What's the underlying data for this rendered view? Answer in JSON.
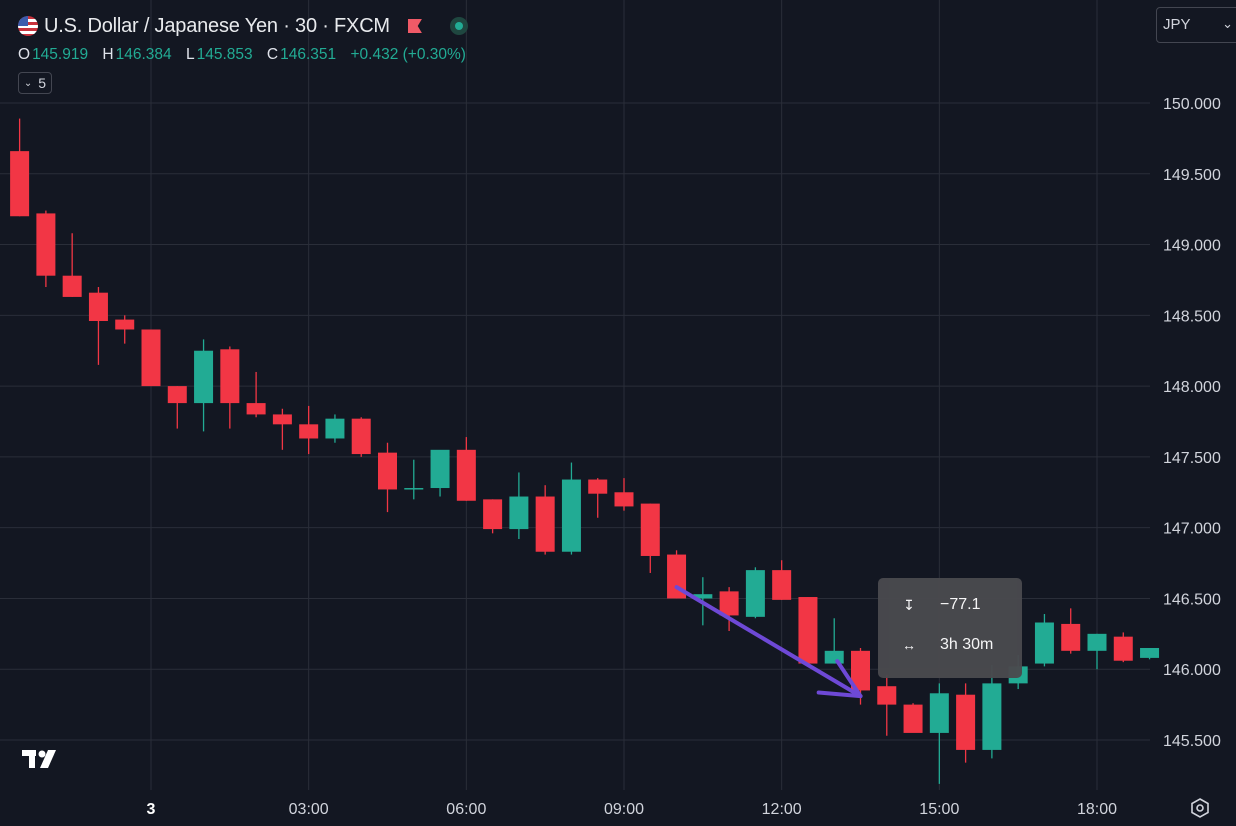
{
  "header": {
    "title": "U.S. Dollar / Japanese Yen · 30 · FXCM",
    "ohlc": [
      {
        "key": "O",
        "value": "145.919"
      },
      {
        "key": "H",
        "value": "146.384"
      },
      {
        "key": "L",
        "value": "145.853"
      },
      {
        "key": "C",
        "value": "146.351"
      },
      {
        "key": "",
        "value": "+0.432 (+0.30%)"
      }
    ],
    "indicators_count": "5",
    "currency": "JPY"
  },
  "measure": {
    "price_change": "−77.1",
    "time_span": "3h 30m"
  },
  "colors": {
    "background": "#131722",
    "up": "#22ab94",
    "down": "#f23645",
    "grid": "#2a2e39",
    "arrow": "#6e49d6"
  },
  "icons": [
    "us-japan-flag-icon",
    "flag-icon",
    "live-status-icon",
    "chevron-down-icon",
    "tradingview-logo-icon",
    "settings-icon",
    "price-range-icon",
    "time-range-icon"
  ],
  "chart_data": {
    "type": "candlestick",
    "title": "U.S. Dollar / Japanese Yen · 30 · FXCM",
    "y_ticks": [
      150.0,
      149.5,
      149.0,
      148.5,
      148.0,
      147.5,
      147.0,
      146.5,
      146.0,
      145.5
    ],
    "y_tick_labels": [
      "150.000",
      "149.500",
      "149.000",
      "148.500",
      "148.000",
      "147.500",
      "147.000",
      "146.500",
      "146.000",
      "145.500"
    ],
    "x_ticks": [
      {
        "label": "3",
        "hour": 0
      },
      {
        "label": "03:00",
        "hour": 3
      },
      {
        "label": "06:00",
        "hour": 6
      },
      {
        "label": "09:00",
        "hour": 9
      },
      {
        "label": "12:00",
        "hour": 12
      },
      {
        "label": "15:00",
        "hour": 15
      },
      {
        "label": "18:00",
        "hour": 18
      }
    ],
    "ylim": [
      145.2,
      150.1
    ],
    "candles": [
      {
        "t": -2.5,
        "o": 149.66,
        "h": 149.89,
        "l": 149.2,
        "c": 149.2
      },
      {
        "t": -2.0,
        "o": 149.22,
        "h": 149.24,
        "l": 148.7,
        "c": 148.78
      },
      {
        "t": -1.5,
        "o": 148.78,
        "h": 149.08,
        "l": 148.63,
        "c": 148.63
      },
      {
        "t": -1.0,
        "o": 148.66,
        "h": 148.7,
        "l": 148.15,
        "c": 148.46
      },
      {
        "t": -0.5,
        "o": 148.47,
        "h": 148.5,
        "l": 148.3,
        "c": 148.4
      },
      {
        "t": 0.0,
        "o": 148.4,
        "h": 148.4,
        "l": 148.0,
        "c": 148.0
      },
      {
        "t": 0.5,
        "o": 148.0,
        "h": 148.0,
        "l": 147.7,
        "c": 147.88
      },
      {
        "t": 1.0,
        "o": 147.88,
        "h": 148.33,
        "l": 147.68,
        "c": 148.25
      },
      {
        "t": 1.5,
        "o": 148.26,
        "h": 148.28,
        "l": 147.7,
        "c": 147.88
      },
      {
        "t": 2.0,
        "o": 147.88,
        "h": 148.1,
        "l": 147.78,
        "c": 147.8
      },
      {
        "t": 2.5,
        "o": 147.8,
        "h": 147.84,
        "l": 147.55,
        "c": 147.73
      },
      {
        "t": 3.0,
        "o": 147.73,
        "h": 147.86,
        "l": 147.52,
        "c": 147.63
      },
      {
        "t": 3.5,
        "o": 147.63,
        "h": 147.8,
        "l": 147.6,
        "c": 147.77
      },
      {
        "t": 4.0,
        "o": 147.77,
        "h": 147.78,
        "l": 147.5,
        "c": 147.52
      },
      {
        "t": 4.5,
        "o": 147.53,
        "h": 147.6,
        "l": 147.11,
        "c": 147.27
      },
      {
        "t": 5.0,
        "o": 147.27,
        "h": 147.48,
        "l": 147.2,
        "c": 147.28
      },
      {
        "t": 5.5,
        "o": 147.28,
        "h": 147.52,
        "l": 147.22,
        "c": 147.55
      },
      {
        "t": 6.0,
        "o": 147.55,
        "h": 147.64,
        "l": 147.19,
        "c": 147.19
      },
      {
        "t": 6.5,
        "o": 147.2,
        "h": 147.2,
        "l": 146.96,
        "c": 146.99
      },
      {
        "t": 7.0,
        "o": 146.99,
        "h": 147.39,
        "l": 146.92,
        "c": 147.22
      },
      {
        "t": 7.5,
        "o": 147.22,
        "h": 147.3,
        "l": 146.81,
        "c": 146.83
      },
      {
        "t": 8.0,
        "o": 146.83,
        "h": 147.46,
        "l": 146.81,
        "c": 147.34
      },
      {
        "t": 8.5,
        "o": 147.34,
        "h": 147.35,
        "l": 147.07,
        "c": 147.24
      },
      {
        "t": 9.0,
        "o": 147.25,
        "h": 147.35,
        "l": 147.12,
        "c": 147.15
      },
      {
        "t": 9.5,
        "o": 147.17,
        "h": 147.17,
        "l": 146.68,
        "c": 146.8
      },
      {
        "t": 10.0,
        "o": 146.81,
        "h": 146.84,
        "l": 146.5,
        "c": 146.5
      },
      {
        "t": 10.5,
        "o": 146.5,
        "h": 146.65,
        "l": 146.31,
        "c": 146.53
      },
      {
        "t": 11.0,
        "o": 146.55,
        "h": 146.58,
        "l": 146.27,
        "c": 146.38
      },
      {
        "t": 11.5,
        "o": 146.37,
        "h": 146.72,
        "l": 146.36,
        "c": 146.7
      },
      {
        "t": 12.0,
        "o": 146.7,
        "h": 146.77,
        "l": 146.49,
        "c": 146.49
      },
      {
        "t": 12.5,
        "o": 146.51,
        "h": 146.51,
        "l": 146.04,
        "c": 146.04
      },
      {
        "t": 13.0,
        "o": 146.04,
        "h": 146.36,
        "l": 146.04,
        "c": 146.13
      },
      {
        "t": 13.5,
        "o": 146.13,
        "h": 146.15,
        "l": 145.75,
        "c": 145.85
      },
      {
        "t": 14.0,
        "o": 145.88,
        "h": 145.96,
        "l": 145.53,
        "c": 145.75
      },
      {
        "t": 14.5,
        "o": 145.75,
        "h": 145.76,
        "l": 145.56,
        "c": 145.55
      },
      {
        "t": 15.0,
        "o": 145.55,
        "h": 145.9,
        "l": 145.19,
        "c": 145.83
      },
      {
        "t": 15.5,
        "o": 145.82,
        "h": 145.9,
        "l": 145.34,
        "c": 145.43
      },
      {
        "t": 16.0,
        "o": 145.43,
        "h": 146.03,
        "l": 145.37,
        "c": 145.9
      },
      {
        "t": 16.5,
        "o": 145.9,
        "h": 146.1,
        "l": 145.86,
        "c": 146.02
      },
      {
        "t": 17.0,
        "o": 146.04,
        "h": 146.39,
        "l": 146.02,
        "c": 146.33
      },
      {
        "t": 17.5,
        "o": 146.32,
        "h": 146.43,
        "l": 146.11,
        "c": 146.13
      },
      {
        "t": 18.0,
        "o": 146.13,
        "h": 146.25,
        "l": 146.0,
        "c": 146.25
      },
      {
        "t": 18.5,
        "o": 146.23,
        "h": 146.26,
        "l": 146.05,
        "c": 146.06
      },
      {
        "t": 19.0,
        "o": 146.08,
        "h": 146.15,
        "l": 146.07,
        "c": 146.15
      }
    ],
    "drawings": [
      {
        "type": "arrow",
        "from": {
          "t": 10.0,
          "price": 146.58
        },
        "to": {
          "t": 13.5,
          "price": 145.81
        }
      }
    ],
    "grid": true,
    "legend": "top-left"
  }
}
